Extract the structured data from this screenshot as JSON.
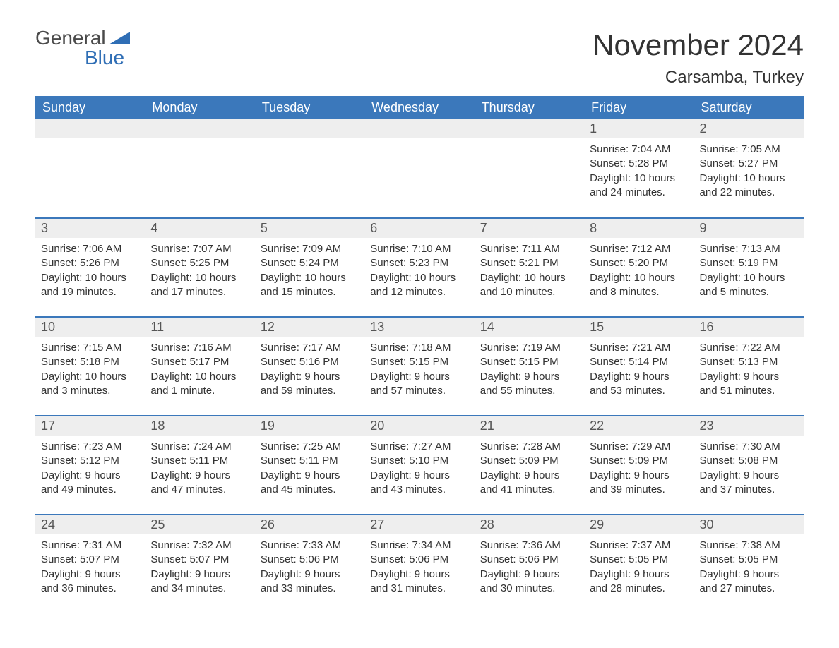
{
  "logo": {
    "general": "General",
    "blue": "Blue"
  },
  "title": "November 2024",
  "location": "Carsamba, Turkey",
  "colors": {
    "header_bg": "#3b78bb",
    "header_text": "#ffffff",
    "daynum_bg": "#eeeeee",
    "daynum_text": "#555555",
    "body_text": "#333333",
    "row_border": "#3b78bb",
    "logo_blue": "#2f6eb5"
  },
  "weekdays": [
    "Sunday",
    "Monday",
    "Tuesday",
    "Wednesday",
    "Thursday",
    "Friday",
    "Saturday"
  ],
  "weeks": [
    [
      null,
      null,
      null,
      null,
      null,
      {
        "n": "1",
        "sunrise": "Sunrise: 7:04 AM",
        "sunset": "Sunset: 5:28 PM",
        "day1": "Daylight: 10 hours",
        "day2": "and 24 minutes."
      },
      {
        "n": "2",
        "sunrise": "Sunrise: 7:05 AM",
        "sunset": "Sunset: 5:27 PM",
        "day1": "Daylight: 10 hours",
        "day2": "and 22 minutes."
      }
    ],
    [
      {
        "n": "3",
        "sunrise": "Sunrise: 7:06 AM",
        "sunset": "Sunset: 5:26 PM",
        "day1": "Daylight: 10 hours",
        "day2": "and 19 minutes."
      },
      {
        "n": "4",
        "sunrise": "Sunrise: 7:07 AM",
        "sunset": "Sunset: 5:25 PM",
        "day1": "Daylight: 10 hours",
        "day2": "and 17 minutes."
      },
      {
        "n": "5",
        "sunrise": "Sunrise: 7:09 AM",
        "sunset": "Sunset: 5:24 PM",
        "day1": "Daylight: 10 hours",
        "day2": "and 15 minutes."
      },
      {
        "n": "6",
        "sunrise": "Sunrise: 7:10 AM",
        "sunset": "Sunset: 5:23 PM",
        "day1": "Daylight: 10 hours",
        "day2": "and 12 minutes."
      },
      {
        "n": "7",
        "sunrise": "Sunrise: 7:11 AM",
        "sunset": "Sunset: 5:21 PM",
        "day1": "Daylight: 10 hours",
        "day2": "and 10 minutes."
      },
      {
        "n": "8",
        "sunrise": "Sunrise: 7:12 AM",
        "sunset": "Sunset: 5:20 PM",
        "day1": "Daylight: 10 hours",
        "day2": "and 8 minutes."
      },
      {
        "n": "9",
        "sunrise": "Sunrise: 7:13 AM",
        "sunset": "Sunset: 5:19 PM",
        "day1": "Daylight: 10 hours",
        "day2": "and 5 minutes."
      }
    ],
    [
      {
        "n": "10",
        "sunrise": "Sunrise: 7:15 AM",
        "sunset": "Sunset: 5:18 PM",
        "day1": "Daylight: 10 hours",
        "day2": "and 3 minutes."
      },
      {
        "n": "11",
        "sunrise": "Sunrise: 7:16 AM",
        "sunset": "Sunset: 5:17 PM",
        "day1": "Daylight: 10 hours",
        "day2": "and 1 minute."
      },
      {
        "n": "12",
        "sunrise": "Sunrise: 7:17 AM",
        "sunset": "Sunset: 5:16 PM",
        "day1": "Daylight: 9 hours",
        "day2": "and 59 minutes."
      },
      {
        "n": "13",
        "sunrise": "Sunrise: 7:18 AM",
        "sunset": "Sunset: 5:15 PM",
        "day1": "Daylight: 9 hours",
        "day2": "and 57 minutes."
      },
      {
        "n": "14",
        "sunrise": "Sunrise: 7:19 AM",
        "sunset": "Sunset: 5:15 PM",
        "day1": "Daylight: 9 hours",
        "day2": "and 55 minutes."
      },
      {
        "n": "15",
        "sunrise": "Sunrise: 7:21 AM",
        "sunset": "Sunset: 5:14 PM",
        "day1": "Daylight: 9 hours",
        "day2": "and 53 minutes."
      },
      {
        "n": "16",
        "sunrise": "Sunrise: 7:22 AM",
        "sunset": "Sunset: 5:13 PM",
        "day1": "Daylight: 9 hours",
        "day2": "and 51 minutes."
      }
    ],
    [
      {
        "n": "17",
        "sunrise": "Sunrise: 7:23 AM",
        "sunset": "Sunset: 5:12 PM",
        "day1": "Daylight: 9 hours",
        "day2": "and 49 minutes."
      },
      {
        "n": "18",
        "sunrise": "Sunrise: 7:24 AM",
        "sunset": "Sunset: 5:11 PM",
        "day1": "Daylight: 9 hours",
        "day2": "and 47 minutes."
      },
      {
        "n": "19",
        "sunrise": "Sunrise: 7:25 AM",
        "sunset": "Sunset: 5:11 PM",
        "day1": "Daylight: 9 hours",
        "day2": "and 45 minutes."
      },
      {
        "n": "20",
        "sunrise": "Sunrise: 7:27 AM",
        "sunset": "Sunset: 5:10 PM",
        "day1": "Daylight: 9 hours",
        "day2": "and 43 minutes."
      },
      {
        "n": "21",
        "sunrise": "Sunrise: 7:28 AM",
        "sunset": "Sunset: 5:09 PM",
        "day1": "Daylight: 9 hours",
        "day2": "and 41 minutes."
      },
      {
        "n": "22",
        "sunrise": "Sunrise: 7:29 AM",
        "sunset": "Sunset: 5:09 PM",
        "day1": "Daylight: 9 hours",
        "day2": "and 39 minutes."
      },
      {
        "n": "23",
        "sunrise": "Sunrise: 7:30 AM",
        "sunset": "Sunset: 5:08 PM",
        "day1": "Daylight: 9 hours",
        "day2": "and 37 minutes."
      }
    ],
    [
      {
        "n": "24",
        "sunrise": "Sunrise: 7:31 AM",
        "sunset": "Sunset: 5:07 PM",
        "day1": "Daylight: 9 hours",
        "day2": "and 36 minutes."
      },
      {
        "n": "25",
        "sunrise": "Sunrise: 7:32 AM",
        "sunset": "Sunset: 5:07 PM",
        "day1": "Daylight: 9 hours",
        "day2": "and 34 minutes."
      },
      {
        "n": "26",
        "sunrise": "Sunrise: 7:33 AM",
        "sunset": "Sunset: 5:06 PM",
        "day1": "Daylight: 9 hours",
        "day2": "and 33 minutes."
      },
      {
        "n": "27",
        "sunrise": "Sunrise: 7:34 AM",
        "sunset": "Sunset: 5:06 PM",
        "day1": "Daylight: 9 hours",
        "day2": "and 31 minutes."
      },
      {
        "n": "28",
        "sunrise": "Sunrise: 7:36 AM",
        "sunset": "Sunset: 5:06 PM",
        "day1": "Daylight: 9 hours",
        "day2": "and 30 minutes."
      },
      {
        "n": "29",
        "sunrise": "Sunrise: 7:37 AM",
        "sunset": "Sunset: 5:05 PM",
        "day1": "Daylight: 9 hours",
        "day2": "and 28 minutes."
      },
      {
        "n": "30",
        "sunrise": "Sunrise: 7:38 AM",
        "sunset": "Sunset: 5:05 PM",
        "day1": "Daylight: 9 hours",
        "day2": "and 27 minutes."
      }
    ]
  ]
}
